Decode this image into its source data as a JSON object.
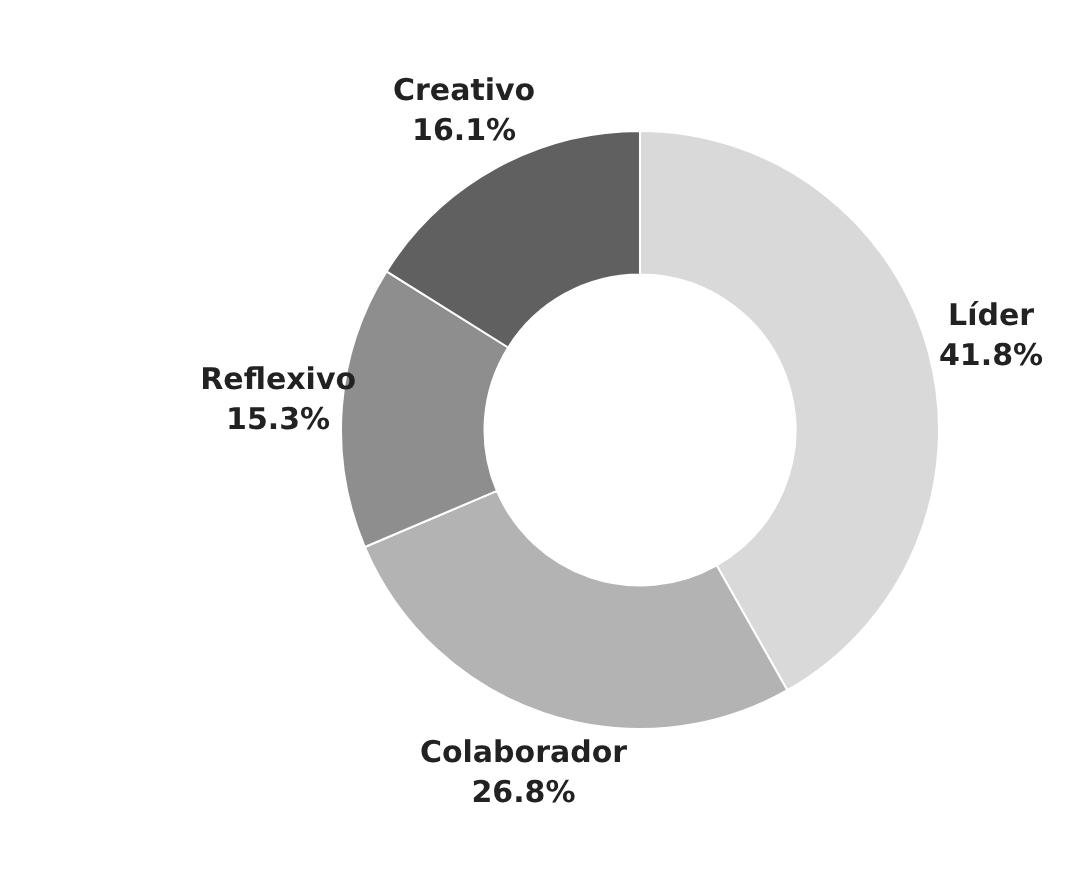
{
  "chart_data": {
    "type": "donut",
    "categories": [
      "Líder",
      "Colaborador",
      "Reflexivo",
      "Creativo"
    ],
    "values": [
      41.8,
      26.8,
      15.3,
      16.1
    ],
    "colors": [
      "#d9d9d9",
      "#b3b3b3",
      "#8e8e8e",
      "#606060"
    ],
    "value_labels": [
      "41.8%",
      "26.8%",
      "15.3%",
      "16.1%"
    ],
    "legend": false
  }
}
